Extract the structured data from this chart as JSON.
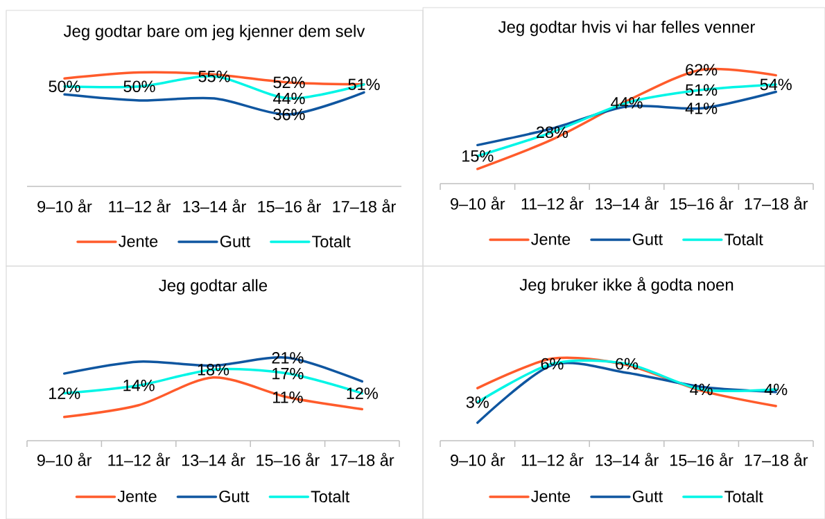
{
  "chart_data": [
    {
      "type": "line",
      "title": "Jeg godtar bare om jeg kjenner dem selv",
      "categories": [
        "9–10 år",
        "11–12 år",
        "13–14 år",
        "15–16 år",
        "17–18 år"
      ],
      "series": [
        {
          "name": "Jente",
          "color": "#ff5b2b",
          "values": [
            54,
            57,
            56,
            52,
            51
          ],
          "value_labels": [
            null,
            null,
            null,
            "52%",
            null
          ]
        },
        {
          "name": "Gutt",
          "color": "#0f56a0",
          "values": [
            46,
            43,
            44,
            36,
            47
          ],
          "value_labels": [
            null,
            null,
            null,
            "36%",
            null
          ]
        },
        {
          "name": "Totalt",
          "color": "#00f5e6",
          "values": [
            50,
            50,
            55,
            44,
            51
          ],
          "value_labels": [
            "50%",
            "50%",
            "55%",
            "44%",
            "51%"
          ]
        }
      ],
      "tick_labels": "x",
      "legend": "bottom"
    },
    {
      "type": "line",
      "title": "Jeg godtar hvis vi har felles venner",
      "categories": [
        "9–10 år",
        "11–12 år",
        "13–14 år",
        "15–16 år",
        "17–18 år"
      ],
      "series": [
        {
          "name": "Jente",
          "color": "#ff5b2b",
          "values": [
            8,
            24,
            45,
            62,
            59
          ],
          "value_labels": [
            null,
            null,
            null,
            "62%",
            null
          ]
        },
        {
          "name": "Gutt",
          "color": "#0f56a0",
          "values": [
            21,
            30,
            42,
            41,
            50
          ],
          "value_labels": [
            null,
            null,
            null,
            "41%",
            null
          ]
        },
        {
          "name": "Totalt",
          "color": "#00f5e6",
          "values": [
            15,
            28,
            44,
            51,
            54
          ],
          "value_labels": [
            "15%",
            "28%",
            "44%",
            "51%",
            "54%"
          ]
        }
      ],
      "tick_labels": "x",
      "legend": "bottom"
    },
    {
      "type": "line",
      "title": "Jeg godtar alle",
      "categories": [
        "9–10 år",
        "11–12 år",
        "13–14 år",
        "15–16 år",
        "17–18 år"
      ],
      "series": [
        {
          "name": "Jente",
          "color": "#ff5b2b",
          "values": [
            6,
            9,
            16,
            11,
            8
          ],
          "value_labels": [
            null,
            null,
            null,
            "11%",
            null
          ]
        },
        {
          "name": "Gutt",
          "color": "#0f56a0",
          "values": [
            17,
            20,
            19,
            21,
            15
          ],
          "value_labels": [
            null,
            null,
            null,
            "21%",
            null
          ]
        },
        {
          "name": "Totalt",
          "color": "#00f5e6",
          "values": [
            12,
            14,
            18,
            17,
            12
          ],
          "value_labels": [
            "12%",
            "14%",
            "18%",
            "17%",
            "12%"
          ]
        }
      ],
      "tick_labels": "x",
      "legend": "bottom"
    },
    {
      "type": "line",
      "title": "Jeg bruker ikke å godta noen",
      "categories": [
        "9–10 år",
        "11–12 år",
        "13–14 år",
        "15–16 år",
        "17–18 år"
      ],
      "series": [
        {
          "name": "Jente",
          "color": "#ff5b2b",
          "values": [
            4.1,
            6.4,
            5.9,
            3.9,
            2.7
          ]
        },
        {
          "name": "Gutt",
          "color": "#0f56a0",
          "values": [
            1.4,
            5.9,
            5.3,
            4.2,
            3.8
          ]
        },
        {
          "name": "Totalt",
          "color": "#00f5e6",
          "values": [
            3,
            6,
            6,
            4,
            4
          ],
          "value_labels": [
            "3%",
            "6%",
            "6%",
            "4%",
            "4%"
          ]
        }
      ],
      "tick_labels": "x",
      "legend": "bottom"
    }
  ]
}
